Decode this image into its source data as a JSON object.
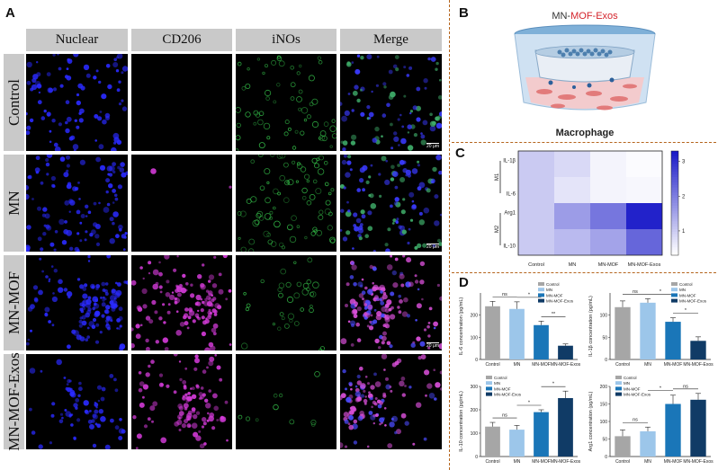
{
  "panelA": {
    "letter": "A",
    "columns": [
      "Nuclear",
      "CD206",
      "iNOs",
      "Merge"
    ],
    "rows": [
      "Control",
      "MN",
      "MN-MOF",
      "MN-MOF-Exos"
    ],
    "scale_bar": "20 μm"
  },
  "panelB": {
    "letter": "B",
    "title_prefix": "MN-",
    "title_highlight": "MOF-Exos",
    "caption": "Macrophage"
  },
  "panelC": {
    "letter": "C",
    "chart_data": {
      "type": "heatmap",
      "x": [
        "Control",
        "MN",
        "MN-MOF",
        "MN-MOF-Exos"
      ],
      "y": [
        "IL-1β",
        "IL-6",
        "Arg1",
        "IL-10"
      ],
      "groups": [
        {
          "name": "M1",
          "rows": [
            "IL-1β",
            "IL-6"
          ]
        },
        {
          "name": "M2",
          "rows": [
            "Arg1",
            "IL-10"
          ]
        }
      ],
      "values": [
        [
          1.0,
          0.8,
          0.45,
          0.35
        ],
        [
          1.0,
          0.65,
          0.45,
          0.4
        ],
        [
          1.0,
          1.6,
          2.1,
          3.2
        ],
        [
          1.0,
          1.2,
          1.5,
          2.3
        ]
      ],
      "colorbar": {
        "ticks": [
          "1",
          "2",
          "3"
        ],
        "range": [
          0.3,
          3.3
        ],
        "low": "#ffffff",
        "high": "#1a1ac8"
      }
    }
  },
  "panelD": {
    "letter": "D",
    "chart_data": [
      {
        "type": "bar",
        "ylabel": "IL-6 concentration (pg/mL)",
        "categories": [
          "Control",
          "MN",
          "MN-MOF",
          "MN-MOF-Exos"
        ],
        "values": [
          240,
          228,
          155,
          62
        ],
        "errors": [
          22,
          32,
          18,
          8
        ],
        "ylim": [
          0,
          300
        ],
        "yticks": [
          "0",
          "100",
          "200"
        ],
        "legend_position": "top-right",
        "legend": [
          "Control",
          "MN",
          "MN-MOF",
          "MN-MOF-Exos"
        ],
        "significance": [
          {
            "label": "ns",
            "from": 0,
            "to": 1
          },
          {
            "label": "*",
            "from": 1,
            "to": 2
          },
          {
            "label": "**",
            "from": 2,
            "to": 3
          }
        ]
      },
      {
        "type": "bar",
        "ylabel": "IL-1β concentration (pg/mL)",
        "categories": [
          "Control",
          "MN",
          "MN-MOF",
          "MN-MOF-Exos"
        ],
        "values": [
          118,
          128,
          85,
          42
        ],
        "errors": [
          14,
          9,
          9,
          9
        ],
        "ylim": [
          0,
          150
        ],
        "yticks": [
          "0",
          "50",
          "100"
        ],
        "legend_position": "top-right",
        "legend": [
          "Control",
          "MN",
          "MN-MOF",
          "MN-MOF-Exos"
        ],
        "significance": [
          {
            "label": "ns",
            "from": 0,
            "to": 1
          },
          {
            "label": "*",
            "from": 1,
            "to": 2
          },
          {
            "label": "*",
            "from": 2,
            "to": 3
          }
        ]
      },
      {
        "type": "bar",
        "ylabel": "IL-10 concentration (pg/mL)",
        "categories": [
          "Control",
          "MN",
          "MN-MOF",
          "MN-MOF-Exos"
        ],
        "values": [
          128,
          115,
          190,
          250
        ],
        "errors": [
          18,
          18,
          10,
          30
        ],
        "ylim": [
          0,
          300
        ],
        "yticks": [
          "0",
          "100",
          "200",
          "300"
        ],
        "legend_position": "top-left",
        "legend": [
          "Control",
          "MN",
          "MN-MOF",
          "MN-MOF-Exos"
        ],
        "significance": [
          {
            "label": "ns",
            "from": 0,
            "to": 1
          },
          {
            "label": "*",
            "from": 1,
            "to": 2
          },
          {
            "label": "*",
            "from": 2,
            "to": 3
          }
        ]
      },
      {
        "type": "bar",
        "ylabel": "Arg1 concentration (pg/mL)",
        "categories": [
          "Control",
          "MN",
          "MN-MOF",
          "MN-MOF-Exos"
        ],
        "values": [
          58,
          72,
          150,
          162
        ],
        "errors": [
          18,
          12,
          25,
          18
        ],
        "ylim": [
          0,
          200
        ],
        "yticks": [
          "0",
          "50",
          "100",
          "150",
          "200"
        ],
        "legend_position": "top-left",
        "legend": [
          "Control",
          "MN",
          "MN-MOF",
          "MN-MOF-Exos"
        ],
        "significance": [
          {
            "label": "ns",
            "from": 0,
            "to": 1
          },
          {
            "label": "*",
            "from": 1,
            "to": 2
          },
          {
            "label": "ns",
            "from": 2,
            "to": 3
          }
        ]
      }
    ],
    "bar_colors": [
      "#a6a6a6",
      "#9cc6ea",
      "#1a76b8",
      "#103b66"
    ]
  }
}
